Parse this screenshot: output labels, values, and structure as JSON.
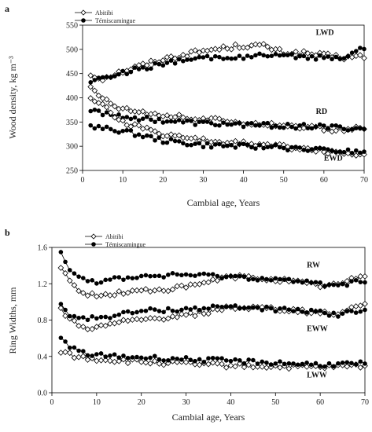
{
  "chart_data": [
    {
      "type": "scatter",
      "panel_label": "a",
      "title": "",
      "xlabel": "Cambial age, Years",
      "ylabel": "Wood density, kg m⁻³",
      "xlim": [
        0,
        70
      ],
      "ylim": [
        250,
        550
      ],
      "xticks": [
        0,
        10,
        20,
        30,
        40,
        50,
        60,
        70
      ],
      "yticks": [
        250,
        300,
        350,
        400,
        450,
        500,
        550
      ],
      "legend": {
        "placement": "top-left",
        "entries": [
          "Abitibi",
          "Témiscamingue"
        ]
      },
      "series_labels": [
        {
          "text": "LWD",
          "x": 58,
          "y": 530
        },
        {
          "text": "RD",
          "x": 58,
          "y": 367
        },
        {
          "text": "EWD",
          "x": 60,
          "y": 270
        }
      ],
      "x_range": [
        2,
        70
      ],
      "series": [
        {
          "name": "Abitibi",
          "group": "LWD",
          "marker": "diamond-open",
          "knots": [
            [
              2,
              447
            ],
            [
              5,
              440
            ],
            [
              10,
              455
            ],
            [
              20,
              480
            ],
            [
              30,
              497
            ],
            [
              40,
              508
            ],
            [
              45,
              507
            ],
            [
              50,
              493
            ],
            [
              55,
              492
            ],
            [
              60,
              487
            ],
            [
              65,
              483
            ],
            [
              70,
              485
            ]
          ]
        },
        {
          "name": "Témiscamingue",
          "group": "LWD",
          "marker": "circle-filled",
          "knots": [
            [
              2,
              436
            ],
            [
              5,
              440
            ],
            [
              10,
              452
            ],
            [
              20,
              470
            ],
            [
              30,
              482
            ],
            [
              40,
              485
            ],
            [
              45,
              487
            ],
            [
              50,
              485
            ],
            [
              55,
              485
            ],
            [
              60,
              482
            ],
            [
              65,
              485
            ],
            [
              68,
              498
            ],
            [
              70,
              503
            ]
          ]
        },
        {
          "name": "Abitibi",
          "group": "RD",
          "marker": "diamond-open",
          "knots": [
            [
              2,
              420
            ],
            [
              5,
              400
            ],
            [
              8,
              385
            ],
            [
              10,
              378
            ],
            [
              20,
              365
            ],
            [
              30,
              355
            ],
            [
              40,
              350
            ],
            [
              50,
              343
            ],
            [
              60,
              336
            ],
            [
              65,
              334
            ],
            [
              70,
              337
            ]
          ]
        },
        {
          "name": "Témiscamingue",
          "group": "RD",
          "marker": "circle-filled",
          "knots": [
            [
              2,
              373
            ],
            [
              10,
              362
            ],
            [
              20,
              353
            ],
            [
              30,
              347
            ],
            [
              40,
              345
            ],
            [
              50,
              342
            ],
            [
              60,
              340
            ],
            [
              70,
              336
            ]
          ]
        },
        {
          "name": "Abitibi",
          "group": "EWD",
          "marker": "diamond-open",
          "knots": [
            [
              2,
              403
            ],
            [
              5,
              385
            ],
            [
              8,
              362
            ],
            [
              10,
              350
            ],
            [
              15,
              338
            ],
            [
              20,
              325
            ],
            [
              30,
              312
            ],
            [
              40,
              305
            ],
            [
              50,
              300
            ],
            [
              60,
              290
            ],
            [
              70,
              283
            ]
          ]
        },
        {
          "name": "Témiscamingue",
          "group": "EWD",
          "marker": "circle-filled",
          "knots": [
            [
              2,
              340
            ],
            [
              10,
              332
            ],
            [
              20,
              312
            ],
            [
              30,
              303
            ],
            [
              40,
              300
            ],
            [
              50,
              297
            ],
            [
              60,
              291
            ],
            [
              70,
              288
            ]
          ]
        }
      ]
    },
    {
      "type": "scatter",
      "panel_label": "b",
      "title": "",
      "xlabel": "Cambial age, Years",
      "ylabel": "Ring Widths, mm",
      "xlim": [
        0,
        70
      ],
      "ylim": [
        0.0,
        1.6
      ],
      "xticks": [
        0,
        10,
        20,
        30,
        40,
        50,
        60,
        70
      ],
      "yticks": [
        "0.0",
        "0.4",
        "0.8",
        "1.2",
        "1.6"
      ],
      "legend": {
        "placement": "top-left",
        "entries": [
          "Abitibi",
          "Témiscamingue"
        ]
      },
      "series_labels": [
        {
          "text": "RW",
          "x": 57,
          "y": 1.38
        },
        {
          "text": "EWW",
          "x": 57,
          "y": 0.68
        },
        {
          "text": "LWW",
          "x": 57,
          "y": 0.17
        }
      ],
      "x_range": [
        2,
        70
      ],
      "series": [
        {
          "name": "Abitibi",
          "group": "RW",
          "marker": "diamond-open",
          "knots": [
            [
              2,
              1.38
            ],
            [
              4,
              1.22
            ],
            [
              7,
              1.1
            ],
            [
              10,
              1.06
            ],
            [
              15,
              1.1
            ],
            [
              20,
              1.12
            ],
            [
              30,
              1.16
            ],
            [
              40,
              1.28
            ],
            [
              50,
              1.25
            ],
            [
              60,
              1.18
            ],
            [
              65,
              1.2
            ],
            [
              70,
              1.3
            ]
          ]
        },
        {
          "name": "Témiscamingue",
          "group": "RW",
          "marker": "circle-filled",
          "knots": [
            [
              2,
              1.57
            ],
            [
              4,
              1.36
            ],
            [
              7,
              1.26
            ],
            [
              10,
              1.22
            ],
            [
              15,
              1.26
            ],
            [
              20,
              1.28
            ],
            [
              30,
              1.3
            ],
            [
              40,
              1.28
            ],
            [
              50,
              1.25
            ],
            [
              60,
              1.2
            ],
            [
              65,
              1.19
            ],
            [
              70,
              1.23
            ]
          ]
        },
        {
          "name": "Abitibi",
          "group": "EWW",
          "marker": "diamond-open",
          "knots": [
            [
              2,
              0.92
            ],
            [
              4,
              0.8
            ],
            [
              7,
              0.72
            ],
            [
              10,
              0.71
            ],
            [
              15,
              0.77
            ],
            [
              20,
              0.8
            ],
            [
              30,
              0.85
            ],
            [
              40,
              0.94
            ],
            [
              50,
              0.92
            ],
            [
              60,
              0.88
            ],
            [
              65,
              0.88
            ],
            [
              70,
              0.99
            ]
          ]
        },
        {
          "name": "Témiscamingue",
          "group": "EWW",
          "marker": "circle-filled",
          "knots": [
            [
              2,
              0.98
            ],
            [
              4,
              0.85
            ],
            [
              7,
              0.82
            ],
            [
              10,
              0.82
            ],
            [
              15,
              0.86
            ],
            [
              20,
              0.9
            ],
            [
              30,
              0.92
            ],
            [
              40,
              0.95
            ],
            [
              50,
              0.92
            ],
            [
              60,
              0.88
            ],
            [
              65,
              0.86
            ],
            [
              70,
              0.92
            ]
          ]
        },
        {
          "name": "Abitibi",
          "group": "LWW",
          "marker": "diamond-open",
          "knots": [
            [
              2,
              0.46
            ],
            [
              5,
              0.4
            ],
            [
              10,
              0.37
            ],
            [
              20,
              0.34
            ],
            [
              30,
              0.32
            ],
            [
              40,
              0.3
            ],
            [
              50,
              0.29
            ],
            [
              60,
              0.28
            ],
            [
              70,
              0.3
            ]
          ]
        },
        {
          "name": "Témiscamingue",
          "group": "LWW",
          "marker": "circle-filled",
          "knots": [
            [
              2,
              0.59
            ],
            [
              4,
              0.5
            ],
            [
              7,
              0.44
            ],
            [
              10,
              0.41
            ],
            [
              20,
              0.39
            ],
            [
              30,
              0.37
            ],
            [
              40,
              0.35
            ],
            [
              50,
              0.33
            ],
            [
              60,
              0.31
            ],
            [
              70,
              0.32
            ]
          ]
        }
      ]
    }
  ]
}
